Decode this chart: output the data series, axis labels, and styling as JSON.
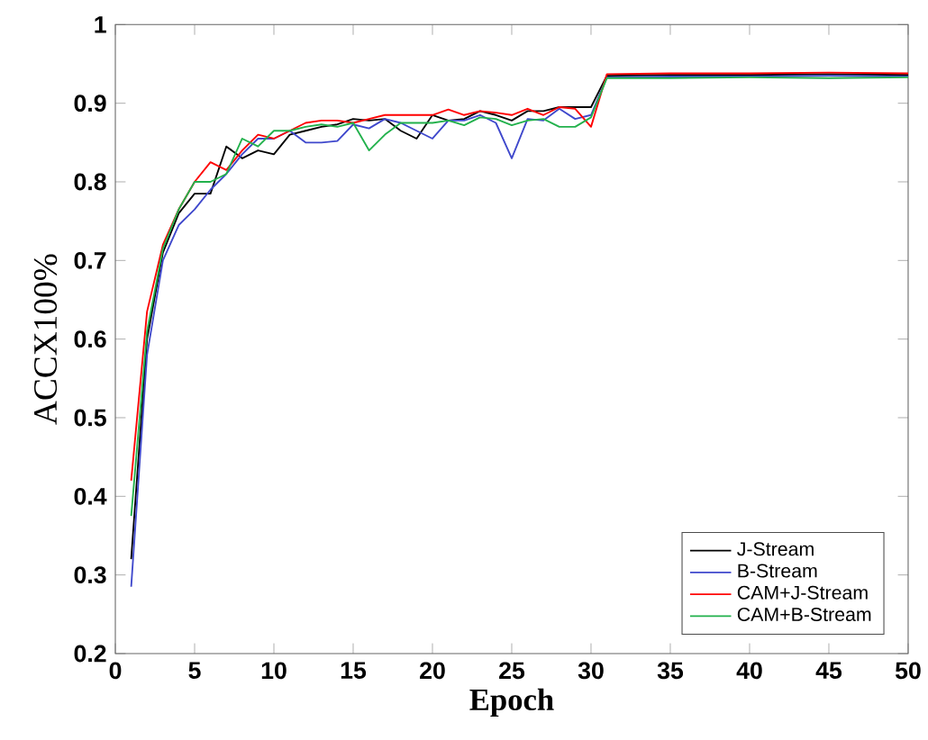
{
  "chart_data": {
    "type": "line",
    "xlabel": "Epoch",
    "ylabel": "ACCX100%",
    "x": [
      1,
      2,
      3,
      4,
      5,
      6,
      7,
      8,
      9,
      10,
      11,
      12,
      13,
      14,
      15,
      16,
      17,
      18,
      19,
      20,
      21,
      22,
      23,
      24,
      25,
      26,
      27,
      28,
      29,
      30,
      31,
      35,
      40,
      45,
      50
    ],
    "series": [
      {
        "name": "J-Stream",
        "color": "#000000",
        "values": [
          0.32,
          0.6,
          0.71,
          0.76,
          0.785,
          0.785,
          0.845,
          0.83,
          0.84,
          0.835,
          0.86,
          0.865,
          0.87,
          0.873,
          0.88,
          0.878,
          0.88,
          0.865,
          0.855,
          0.885,
          0.878,
          0.88,
          0.89,
          0.885,
          0.878,
          0.89,
          0.89,
          0.895,
          0.895,
          0.895,
          0.935,
          0.936,
          0.936,
          0.937,
          0.936
        ]
      },
      {
        "name": "B-Stream",
        "color": "#3f48cc",
        "values": [
          0.285,
          0.58,
          0.7,
          0.745,
          0.765,
          0.79,
          0.81,
          0.835,
          0.855,
          0.855,
          0.865,
          0.85,
          0.85,
          0.852,
          0.873,
          0.868,
          0.88,
          0.875,
          0.865,
          0.855,
          0.878,
          0.878,
          0.885,
          0.875,
          0.83,
          0.88,
          0.878,
          0.893,
          0.88,
          0.885,
          0.933,
          0.934,
          0.934,
          0.935,
          0.934
        ]
      },
      {
        "name": "CAM+J-Stream",
        "color": "#ff0000",
        "values": [
          0.42,
          0.635,
          0.72,
          0.765,
          0.8,
          0.825,
          0.815,
          0.84,
          0.86,
          0.855,
          0.865,
          0.875,
          0.878,
          0.878,
          0.875,
          0.88,
          0.885,
          0.885,
          0.885,
          0.885,
          0.892,
          0.885,
          0.89,
          0.888,
          0.885,
          0.893,
          0.885,
          0.895,
          0.893,
          0.87,
          0.937,
          0.938,
          0.938,
          0.939,
          0.938
        ]
      },
      {
        "name": "CAM+B-Stream",
        "color": "#22b14c",
        "values": [
          0.375,
          0.61,
          0.715,
          0.765,
          0.8,
          0.8,
          0.81,
          0.855,
          0.845,
          0.865,
          0.865,
          0.87,
          0.873,
          0.87,
          0.875,
          0.84,
          0.86,
          0.875,
          0.875,
          0.875,
          0.878,
          0.872,
          0.882,
          0.88,
          0.872,
          0.878,
          0.88,
          0.87,
          0.87,
          0.882,
          0.932,
          0.932,
          0.933,
          0.932,
          0.933
        ]
      }
    ],
    "xlim": [
      0,
      50
    ],
    "ylim": [
      0.2,
      1
    ],
    "xticks": [
      0,
      5,
      10,
      15,
      20,
      25,
      30,
      35,
      40,
      45,
      50
    ],
    "yticks": [
      {
        "value": 0.2,
        "label": "0.2"
      },
      {
        "value": 0.3,
        "label": "0.3"
      },
      {
        "value": 0.4,
        "label": "0.4"
      },
      {
        "value": 0.5,
        "label": "0.5"
      },
      {
        "value": 0.6,
        "label": "0.6"
      },
      {
        "value": 0.7,
        "label": "0.7"
      },
      {
        "value": 0.8,
        "label": "0.8"
      },
      {
        "value": 0.9,
        "label": "0.9"
      },
      {
        "value": 1,
        "label": "1"
      }
    ],
    "legend": "bottom right",
    "grid": false,
    "marker": "none",
    "line_style": "solid"
  }
}
